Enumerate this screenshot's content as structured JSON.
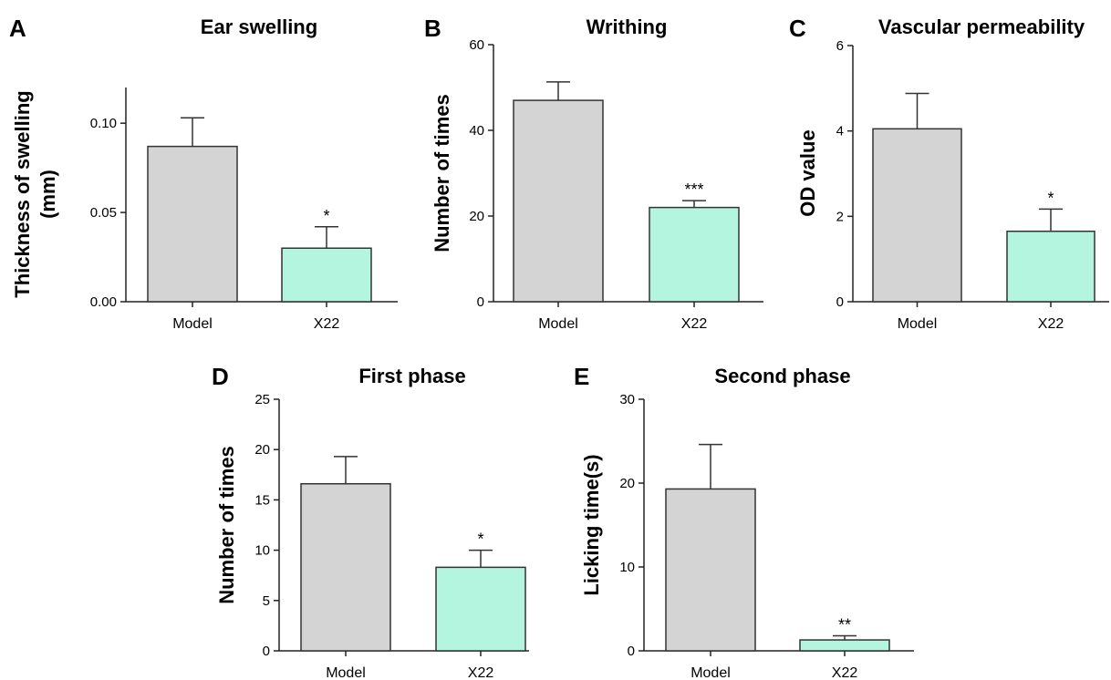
{
  "colors": {
    "model": "#d4d4d4",
    "x22": "#b3f5df",
    "stroke": "#333333"
  },
  "chart_data": [
    {
      "type": "bar",
      "panel": "A",
      "title": "Ear swelling",
      "ylabel": [
        "Thickness of swelling",
        "(mm)"
      ],
      "categories": [
        "Model",
        "X22"
      ],
      "values": [
        0.087,
        0.03
      ],
      "errors": [
        0.016,
        0.012
      ],
      "significance": [
        "",
        "*"
      ],
      "ylim": [
        0,
        0.12
      ],
      "yticks": [
        0.0,
        0.05,
        0.1
      ],
      "ytick_labels": [
        "0.00",
        "0.05",
        "0.10"
      ],
      "grid": false
    },
    {
      "type": "bar",
      "panel": "B",
      "title": "Writhing",
      "ylabel": [
        "Number of times"
      ],
      "categories": [
        "Model",
        "X22"
      ],
      "values": [
        47,
        22
      ],
      "errors": [
        4.3,
        1.6
      ],
      "significance": [
        "",
        "***"
      ],
      "ylim": [
        0,
        60
      ],
      "yticks": [
        0,
        20,
        40,
        60
      ],
      "ytick_labels": [
        "0",
        "20",
        "40",
        "60"
      ],
      "grid": false
    },
    {
      "type": "bar",
      "panel": "C",
      "title": "Vascular permeability",
      "ylabel": [
        "OD value"
      ],
      "categories": [
        "Model",
        "X22"
      ],
      "values": [
        4.05,
        1.65
      ],
      "errors": [
        0.83,
        0.52
      ],
      "significance": [
        "",
        "*"
      ],
      "ylim": [
        0,
        6
      ],
      "yticks": [
        0,
        2,
        4,
        6
      ],
      "ytick_labels": [
        "0",
        "2",
        "4",
        "6"
      ],
      "grid": false
    },
    {
      "type": "bar",
      "panel": "D",
      "title": "First phase",
      "ylabel": [
        "Number of times"
      ],
      "categories": [
        "Model",
        "X22"
      ],
      "values": [
        16.6,
        8.3
      ],
      "errors": [
        2.7,
        1.7
      ],
      "significance": [
        "",
        "*"
      ],
      "ylim": [
        0,
        25
      ],
      "yticks": [
        0,
        5,
        10,
        15,
        20,
        25
      ],
      "ytick_labels": [
        "0",
        "5",
        "10",
        "15",
        "20",
        "25"
      ],
      "grid": false
    },
    {
      "type": "bar",
      "panel": "E",
      "title": "Second phase",
      "ylabel": [
        "Licking time(s)"
      ],
      "categories": [
        "Model",
        "X22"
      ],
      "values": [
        19.3,
        1.3
      ],
      "errors": [
        5.3,
        0.5
      ],
      "significance": [
        "",
        "**"
      ],
      "ylim": [
        0,
        30
      ],
      "yticks": [
        0,
        10,
        20,
        30
      ],
      "ytick_labels": [
        "0",
        "10",
        "20",
        "30"
      ],
      "grid": false
    }
  ]
}
